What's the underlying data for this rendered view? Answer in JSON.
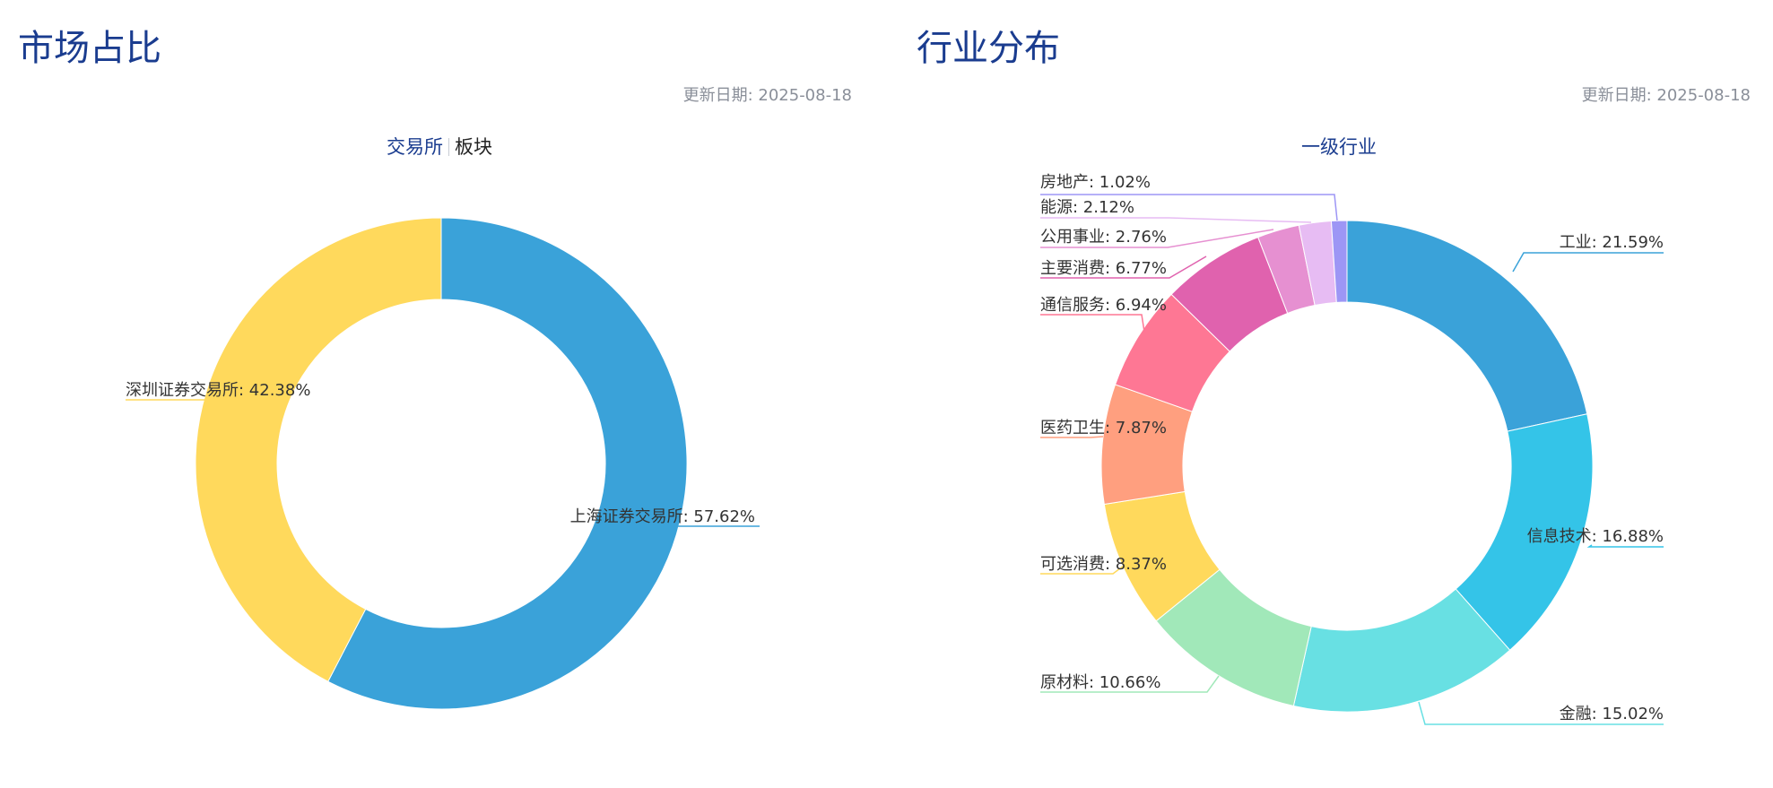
{
  "left_panel": {
    "title": "市场占比",
    "update_date": "更新日期: 2025-08-18",
    "tabs": [
      {
        "label": "交易所",
        "active": true
      },
      {
        "label": "板块",
        "active": false
      }
    ]
  },
  "right_panel": {
    "title": "行业分布",
    "update_date": "更新日期: 2025-08-18",
    "tabs": [
      {
        "label": "一级行业",
        "active": true
      }
    ]
  },
  "chart_data": [
    {
      "type": "pie",
      "variant": "donut",
      "title": "",
      "legend": "none",
      "slices": [
        {
          "name": "上海证券交易所",
          "value": 57.62,
          "label": "上海证券交易所: 57.62%",
          "color": "#3aa2d9"
        },
        {
          "name": "深圳证券交易所",
          "value": 42.38,
          "label": "深圳证券交易所: 42.38%",
          "color": "#ffd95c"
        }
      ]
    },
    {
      "type": "pie",
      "variant": "donut",
      "title": "",
      "legend": "none",
      "slices": [
        {
          "name": "工业",
          "value": 21.59,
          "label": "工业: 21.59%",
          "color": "#3aa2d9"
        },
        {
          "name": "信息技术",
          "value": 16.88,
          "label": "信息技术: 16.88%",
          "color": "#34c4e8"
        },
        {
          "name": "金融",
          "value": 15.02,
          "label": "金融: 15.02%",
          "color": "#68e0e3"
        },
        {
          "name": "原材料",
          "value": 10.66,
          "label": "原材料: 10.66%",
          "color": "#a1e8b9"
        },
        {
          "name": "可选消费",
          "value": 8.37,
          "label": "可选消费: 8.37%",
          "color": "#ffd95c"
        },
        {
          "name": "医药卫生",
          "value": 7.87,
          "label": "医药卫生: 7.87%",
          "color": "#ff9f7f"
        },
        {
          "name": "通信服务",
          "value": 6.94,
          "label": "通信服务: 6.94%",
          "color": "#fe7794"
        },
        {
          "name": "主要消费",
          "value": 6.77,
          "label": "主要消费: 6.77%",
          "color": "#e062ae"
        },
        {
          "name": "公用事业",
          "value": 2.76,
          "label": "公用事业: 2.76%",
          "color": "#e690d1"
        },
        {
          "name": "能源",
          "value": 2.12,
          "label": "能源: 2.12%",
          "color": "#e7bcf3"
        },
        {
          "name": "房地产",
          "value": 1.02,
          "label": "房地产: 1.02%",
          "color": "#9d96f5"
        }
      ]
    }
  ]
}
